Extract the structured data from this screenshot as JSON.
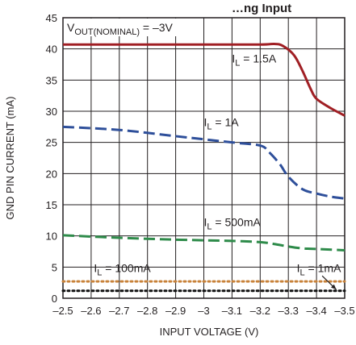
{
  "chart_data": {
    "type": "line",
    "title": "…ng Input",
    "xlabel": "INPUT VOLTAGE (V)",
    "ylabel": "GND PIN CURRENT (mA)",
    "xlim": [
      -2.5,
      -3.5
    ],
    "ylim": [
      0,
      45
    ],
    "xticks": [
      -2.5,
      -2.6,
      -2.7,
      -2.8,
      -2.9,
      -3.0,
      -3.1,
      -3.2,
      -3.3,
      -3.4,
      -3.5
    ],
    "xtick_labels": [
      "–2.5",
      "–2.6",
      "–2.7",
      "–2.8",
      "–2.9",
      "–3",
      "–3.1",
      "–3.2",
      "–3.3",
      "–3.4",
      "–3.5"
    ],
    "yticks": [
      0,
      5,
      10,
      15,
      20,
      25,
      30,
      35,
      40,
      45
    ],
    "ytick_labels": [
      "0",
      "5",
      "10",
      "15",
      "20",
      "25",
      "30",
      "35",
      "40",
      "45"
    ],
    "grid": true,
    "condition": {
      "label_main": "V",
      "label_sub": "OUT(NOMINAL)",
      "label_rest": " = –3V"
    },
    "series": [
      {
        "name": "I_L = 1.5A",
        "color": "#a01f24",
        "style": "solid",
        "x": [
          -2.5,
          -3.0,
          -3.2,
          -3.25,
          -3.28,
          -3.32,
          -3.35,
          -3.38,
          -3.4,
          -3.45,
          -3.5
        ],
        "y": [
          40.7,
          40.7,
          40.7,
          40.8,
          40.5,
          39.0,
          36.5,
          33.5,
          32.0,
          30.5,
          29.3
        ]
      },
      {
        "name": "I_L = 1A",
        "color": "#2e4f9a",
        "style": "dashed",
        "x": [
          -2.5,
          -2.7,
          -2.9,
          -3.0,
          -3.1,
          -3.2,
          -3.23,
          -3.27,
          -3.3,
          -3.35,
          -3.4,
          -3.45,
          -3.5
        ],
        "y": [
          27.5,
          27.0,
          26.0,
          25.5,
          25.0,
          24.5,
          23.5,
          21.5,
          19.5,
          17.5,
          16.8,
          16.3,
          16.0
        ]
      },
      {
        "name": "I_L = 500mA",
        "color": "#2e8b4a",
        "style": "dashed",
        "x": [
          -2.5,
          -2.7,
          -2.9,
          -3.0,
          -3.1,
          -3.2,
          -3.25,
          -3.3,
          -3.35,
          -3.4,
          -3.5
        ],
        "y": [
          10.1,
          9.7,
          9.4,
          9.3,
          9.2,
          9.0,
          8.7,
          8.3,
          8.0,
          7.9,
          7.7
        ]
      },
      {
        "name": "I_L = 100mA",
        "color": "#c8823a",
        "style": "dotted",
        "x": [
          -2.5,
          -3.5
        ],
        "y": [
          2.7,
          2.7
        ]
      },
      {
        "name": "I_L = 1mA",
        "color": "#111111",
        "style": "dotted",
        "x": [
          -2.5,
          -3.5
        ],
        "y": [
          1.2,
          1.2
        ]
      }
    ],
    "annotations": [
      {
        "main": "I",
        "sub": "L",
        "rest": " = 1.5A",
        "x": -3.1,
        "y": 37.8
      },
      {
        "main": "I",
        "sub": "L",
        "rest": " = 1A",
        "x": -3.0,
        "y": 27.6
      },
      {
        "main": "I",
        "sub": "L",
        "rest": " = 500mA",
        "x": -3.0,
        "y": 11.6
      },
      {
        "main": "I",
        "sub": "L",
        "rest": " = 100mA",
        "x": -2.61,
        "y": 4.2
      },
      {
        "main": "I",
        "sub": "L",
        "rest": " = 1mA",
        "x": -3.33,
        "y": 4.2
      }
    ]
  }
}
